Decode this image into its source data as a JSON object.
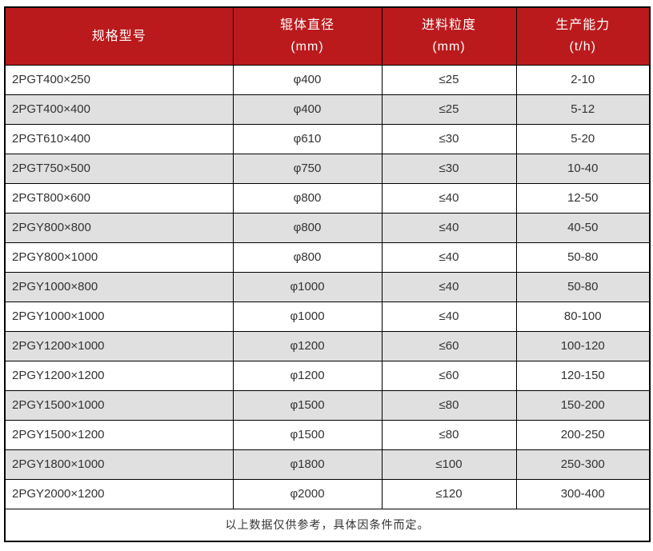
{
  "chart_data": {
    "type": "table",
    "columns": [
      {
        "title": "规格型号",
        "unit": ""
      },
      {
        "title": "辊体直径",
        "unit": "(mm)"
      },
      {
        "title": "进料粒度",
        "unit": "(mm)"
      },
      {
        "title": "生产能力",
        "unit": "(t/h)"
      }
    ],
    "rows": [
      [
        "2PGT400×250",
        "φ400",
        "≤25",
        "2-10"
      ],
      [
        "2PGT400×400",
        "φ400",
        "≤25",
        "5-12"
      ],
      [
        "2PGT610×400",
        "φ610",
        "≤30",
        "5-20"
      ],
      [
        "2PGT750×500",
        "φ750",
        "≤30",
        "10-40"
      ],
      [
        "2PGT800×600",
        "φ800",
        "≤40",
        "12-50"
      ],
      [
        "2PGY800×800",
        "φ800",
        "≤40",
        "40-50"
      ],
      [
        "2PGY800×1000",
        "φ800",
        "≤40",
        "50-80"
      ],
      [
        "2PGY1000×800",
        "φ1000",
        "≤40",
        "50-80"
      ],
      [
        "2PGY1000×1000",
        "φ1000",
        "≤40",
        "80-100"
      ],
      [
        "2PGY1200×1000",
        "φ1200",
        "≤60",
        "100-120"
      ],
      [
        "2PGY1200×1200",
        "φ1200",
        "≤60",
        "120-150"
      ],
      [
        "2PGY1500×1000",
        "φ1500",
        "≤80",
        "150-200"
      ],
      [
        "2PGY1500×1200",
        "φ1500",
        "≤80",
        "200-250"
      ],
      [
        "2PGY1800×1000",
        "φ1800",
        "≤100",
        "250-300"
      ],
      [
        "2PGY2000×1200",
        "φ2000",
        "≤120",
        "300-400"
      ]
    ],
    "footer_note": "以上数据仅供参考，具体因条件而定。",
    "colors": {
      "header_bg": "#BB1A1D",
      "header_text": "#FFFFFF",
      "row_bg": "#FFFFFF",
      "row_alt_bg": "#E0E0E0",
      "border": "#000000",
      "body_text": "#333333"
    }
  }
}
